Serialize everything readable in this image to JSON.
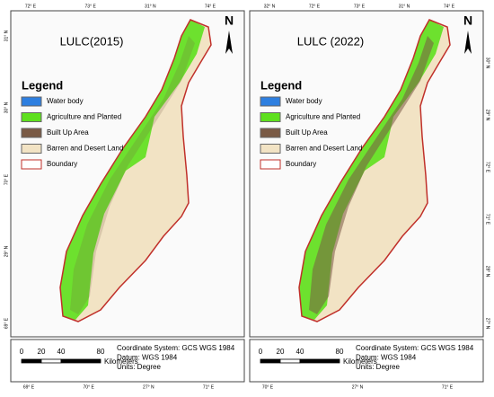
{
  "panels": [
    {
      "title": "LULC(2015)",
      "legend": {
        "title": "Legend",
        "items": [
          {
            "label": "Water body",
            "color": "#2e7fe0"
          },
          {
            "label": "Agriculture and Planted",
            "color": "#5ee01e"
          },
          {
            "label": "Built Up Area",
            "color": "#7a5a45"
          },
          {
            "label": "Barren and Desert Land",
            "color": "#f2e3c4"
          },
          {
            "label": "Boundary",
            "color": "#ffffff"
          }
        ]
      },
      "north": "N",
      "scale": {
        "ticks": [
          0,
          20,
          40,
          80
        ],
        "unit": "Kilometers"
      },
      "coords": [
        "Coordinate System: GCS WGS 1984",
        "Datum: WGS 1984",
        "Units: Degree"
      ],
      "edge_labels": {
        "top": [
          "72° E",
          "73° E",
          "31° N",
          "74° E"
        ],
        "left": [
          "31° N",
          "30° N",
          "70° E",
          "29° N",
          "69° E"
        ],
        "bottom": [
          "69° E",
          "70° E",
          "27° N",
          "71° E"
        ]
      }
    },
    {
      "title": "LULC (2022)",
      "legend": {
        "title": "Legend",
        "items": [
          {
            "label": "Water body",
            "color": "#2e7fe0"
          },
          {
            "label": "Agriculture and Planted",
            "color": "#5ee01e"
          },
          {
            "label": "Built Up Area",
            "color": "#7a5a45"
          },
          {
            "label": "Barren and Desert Land",
            "color": "#f2e3c4"
          },
          {
            "label": "Boundary",
            "color": "#ffffff"
          }
        ]
      },
      "north": "N",
      "scale": {
        "ticks": [
          0,
          20,
          40,
          80
        ],
        "unit": "Kilometers"
      },
      "coords": [
        "Coordinate System: GCS WGS 1984",
        "Datum: WGS 1984",
        "Units: Degree"
      ],
      "edge_labels": {
        "top": [
          "32° N",
          "72° E",
          "73° E",
          "31° N",
          "74° E"
        ],
        "right": [
          "30° N",
          "29° N",
          "72° E",
          "71° E",
          "28° N",
          "27° N"
        ],
        "bottom": [
          "70° E",
          "27° N",
          "71° E"
        ]
      }
    }
  ]
}
